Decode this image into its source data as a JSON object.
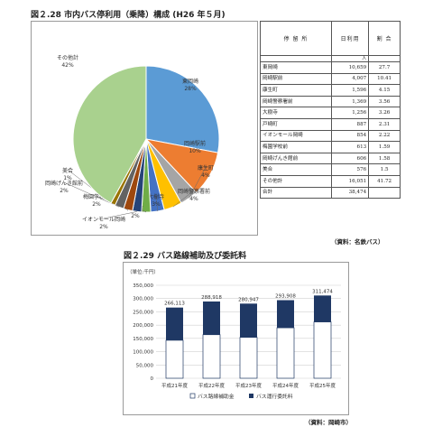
{
  "figure1": {
    "title": "図２.28 市内バス停利用（乗降）構成 (H26 年５月)",
    "table": {
      "headers": [
        "停 留 所",
        "日利用",
        "割 合"
      ],
      "unit": "人",
      "rows": [
        {
          "name": "東岡崎",
          "value": "10,659",
          "pct": "27.7"
        },
        {
          "name": "岡崎駅前",
          "value": "4,007",
          "pct": "10.41"
        },
        {
          "name": "康生町",
          "value": "1,596",
          "pct": "4.15"
        },
        {
          "name": "岡崎警察署前",
          "value": "1,369",
          "pct": "3.56"
        },
        {
          "name": "大樹寺",
          "value": "1,256",
          "pct": "3.26"
        },
        {
          "name": "戸崎町",
          "value": "887",
          "pct": "2.31"
        },
        {
          "name": "イオンモール岡崎",
          "value": "854",
          "pct": "2.22"
        },
        {
          "name": "梅園学校前",
          "value": "613",
          "pct": "1.59"
        },
        {
          "name": "岡崎げんき館前",
          "value": "606",
          "pct": "1.58"
        },
        {
          "name": "美合",
          "value": "576",
          "pct": "1.5"
        },
        {
          "name": "その他計",
          "value": "16,051",
          "pct": "41.72"
        },
        {
          "name": "合計",
          "value": "38,474",
          "pct": ""
        }
      ]
    },
    "source": "（資料：名鉄バス）"
  },
  "figure2": {
    "title": "図２.29 バス路線補助及び委託料",
    "source": "（資料：岡崎市）"
  },
  "colors": {
    "pie": [
      "#5b9bd5",
      "#ed7d31",
      "#a5a5a5",
      "#ffc000",
      "#4472c4",
      "#70ad47",
      "#264478",
      "#9e480e",
      "#636363",
      "#997300",
      "#a9d18e"
    ],
    "bar_navy": "#1f3864",
    "bar_white": "#ffffff"
  },
  "chart_data": [
    {
      "type": "pie",
      "slices": [
        {
          "label": "東岡崎",
          "value": 28,
          "display": "28%"
        },
        {
          "label": "岡崎駅前",
          "value": 10,
          "display": "10%"
        },
        {
          "label": "康生町",
          "value": 4,
          "display": "4%"
        },
        {
          "label": "岡崎警察署前",
          "value": 4,
          "display": "4%"
        },
        {
          "label": "大樹寺",
          "value": 3,
          "display": "3%"
        },
        {
          "label": "戸崎町",
          "value": 2,
          "display": "2%"
        },
        {
          "label": "イオンモール岡崎",
          "value": 2,
          "display": "2%"
        },
        {
          "label": "梅園学校前",
          "value": 2,
          "display": "2%"
        },
        {
          "label": "岡崎げんき館前",
          "value": 2,
          "display": "2%"
        },
        {
          "label": "美合",
          "value": 1,
          "display": "1%"
        },
        {
          "label": "その他計",
          "value": 42,
          "display": "42%"
        }
      ]
    },
    {
      "type": "bar",
      "stacked": true,
      "unit_label": "（単位:千円）",
      "categories": [
        "平成21年度",
        "平成22年度",
        "平成23年度",
        "平成24年度",
        "平成25年度"
      ],
      "series": [
        {
          "name": "バス路線補助金",
          "values": [
            143000,
            164000,
            154000,
            190000,
            212000
          ]
        },
        {
          "name": "バス運行委託料",
          "values": [
            123113,
            124918,
            126947,
            103908,
            99474
          ]
        }
      ],
      "totals": [
        "266,113",
        "288,918",
        "280,947",
        "293,908",
        "311,474"
      ],
      "ylim": [
        0,
        350000
      ],
      "yticks": [
        "0",
        "50,000",
        "100,000",
        "150,000",
        "200,000",
        "250,000",
        "300,000",
        "350,000"
      ],
      "grid": true,
      "legend": "bottom"
    }
  ]
}
